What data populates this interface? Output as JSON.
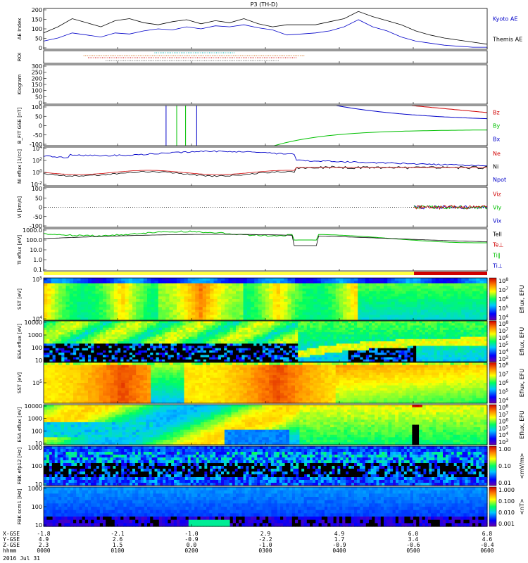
{
  "title": "P3 (TH-D)",
  "chart_data": {
    "type": "line",
    "title": "P3 (TH-D)",
    "date_label": "2016 Jul 31",
    "time_ticks": [
      "0000",
      "0100",
      "0200",
      "0300",
      "0400",
      "0500",
      "0600"
    ],
    "footer": {
      "labels": [
        "X-GSE",
        "Y-GSE",
        "Z-GSE",
        "hhmm"
      ],
      "x_gse": [
        "-1.8",
        "-2.1",
        "-1.0",
        "2.9",
        "4.9",
        "6.0",
        "6.8"
      ],
      "y_gse": [
        "4.9",
        "2.6",
        "-0.9",
        "-2.2",
        "1.7",
        "3.4",
        "4.6"
      ],
      "z_gse": [
        "2.3",
        "1.5",
        "0.0",
        "-1.0",
        "-0.9",
        "-0.6",
        "-0.4"
      ]
    },
    "panels": [
      {
        "id": "ae",
        "ylabel": "AE Index",
        "yticks": [
          "0",
          "50",
          "100",
          "150",
          "200"
        ],
        "ylim": [
          0,
          200
        ],
        "legend": [
          {
            "name": "Kyoto AE",
            "color": "#0000c8"
          },
          {
            "name": "Themis AE",
            "color": "#000000"
          }
        ],
        "series": [
          {
            "name": "Kyoto AE",
            "color": "#0000c8",
            "values": [
              40,
              55,
              80,
              70,
              60,
              80,
              75,
              90,
              100,
              95,
              110,
              100,
              115,
              110,
              120,
              105,
              95,
              70,
              75,
              80,
              90,
              110,
              145,
              110,
              90,
              60,
              40,
              30,
              20,
              15,
              10,
              10
            ]
          },
          {
            "name": "Themis AE",
            "color": "#000000",
            "values": [
              80,
              110,
              150,
              130,
              110,
              140,
              150,
              130,
              120,
              135,
              145,
              125,
              140,
              130,
              150,
              125,
              110,
              120,
              120,
              120,
              135,
              150,
              185,
              160,
              140,
              120,
              90,
              70,
              55,
              45,
              35,
              25
            ]
          }
        ]
      },
      {
        "id": "roi",
        "ylabel": "ROI"
      },
      {
        "id": "kp",
        "ylabel": "Kiogram",
        "yticks": [
          "0",
          "50",
          "100",
          "150",
          "200",
          "250",
          "300"
        ]
      },
      {
        "id": "bfit",
        "ylabel": "B_FIT GSE [nT]",
        "yticks": [
          "-100",
          "-50",
          "0",
          "50",
          "100"
        ],
        "ylim": [
          -100,
          100
        ],
        "legend": [
          {
            "name": "Bz",
            "color": "#d00000"
          },
          {
            "name": "By",
            "color": "#00c000"
          },
          {
            "name": "Bx",
            "color": "#0000c8"
          }
        ]
      },
      {
        "id": "ni",
        "ylabel": "Ni eflux [1/cc]",
        "yticks": [
          "10^-2",
          "10^0",
          "10^2",
          "10^4"
        ],
        "legend": [
          {
            "name": "Ne",
            "color": "#d00000"
          },
          {
            "name": "Ni",
            "color": "#000000"
          },
          {
            "name": "Npot",
            "color": "#0000c8"
          }
        ]
      },
      {
        "id": "vi",
        "ylabel": "Vi [km/s]",
        "yticks": [
          "-100",
          "-50",
          "0",
          "50",
          "100"
        ],
        "legend": [
          {
            "name": "Viz",
            "color": "#d00000"
          },
          {
            "name": "Viy",
            "color": "#00c000"
          },
          {
            "name": "Vix",
            "color": "#0000c8"
          }
        ]
      },
      {
        "id": "ti",
        "ylabel": "Ti eflux [eV]",
        "yticks": [
          "0.1",
          "1.0",
          "10.0",
          "100.0",
          "1000.0"
        ],
        "legend": [
          {
            "name": "Tell",
            "color": "#000000"
          },
          {
            "name": "Te⊥",
            "color": "#d00000"
          },
          {
            "name": "Ti∥",
            "color": "#00c000"
          },
          {
            "name": "Ti⊥",
            "color": "#0000c8"
          }
        ]
      },
      {
        "id": "sst_i",
        "ylabel": "SST [eV]",
        "yticks": [
          "10^4",
          "10^5"
        ],
        "cbar": "Eflux, EFU",
        "cb_ticks": [
          "10^8",
          "10^7",
          "10^6",
          "10^5",
          "10^4"
        ]
      },
      {
        "id": "esa_i",
        "ylabel": "ESA eflux [eV]",
        "yticks": [
          "10",
          "100",
          "1000",
          "10000"
        ],
        "cbar": "Eflux, EFU",
        "cb_ticks": [
          "10^8",
          "10^7",
          "10^6",
          "10^5",
          "10^4",
          "10^3"
        ]
      },
      {
        "id": "sst_e",
        "ylabel": "SST [eV]",
        "yticks": [
          "10^5"
        ],
        "cbar": "Eflux, EFU",
        "cb_ticks": [
          "10^8",
          "10^7",
          "10^6",
          "10^5",
          "10^4"
        ]
      },
      {
        "id": "esa_e",
        "ylabel": "ESA eflux [eV]",
        "yticks": [
          "10",
          "100",
          "1000",
          "10000"
        ],
        "cbar": "Eflux, EFU",
        "cb_ticks": [
          "10^8",
          "10^7",
          "10^6",
          "10^5",
          "10^4",
          "10^3"
        ]
      },
      {
        "id": "fbk_e",
        "ylabel": "FBK efp12 [Hz]",
        "yticks": [
          "10",
          "100",
          "1000"
        ],
        "cbar": "<mV/m>",
        "cb_ticks": [
          "1.00",
          "0.10",
          "0.01"
        ]
      },
      {
        "id": "fbk_b",
        "ylabel": "FBK scm1 [Hz]",
        "yticks": [
          "10",
          "100",
          "1000"
        ],
        "cbar": "<nT>",
        "cb_ticks": [
          "1.000",
          "0.100",
          "0.010",
          "0.001"
        ]
      }
    ]
  }
}
